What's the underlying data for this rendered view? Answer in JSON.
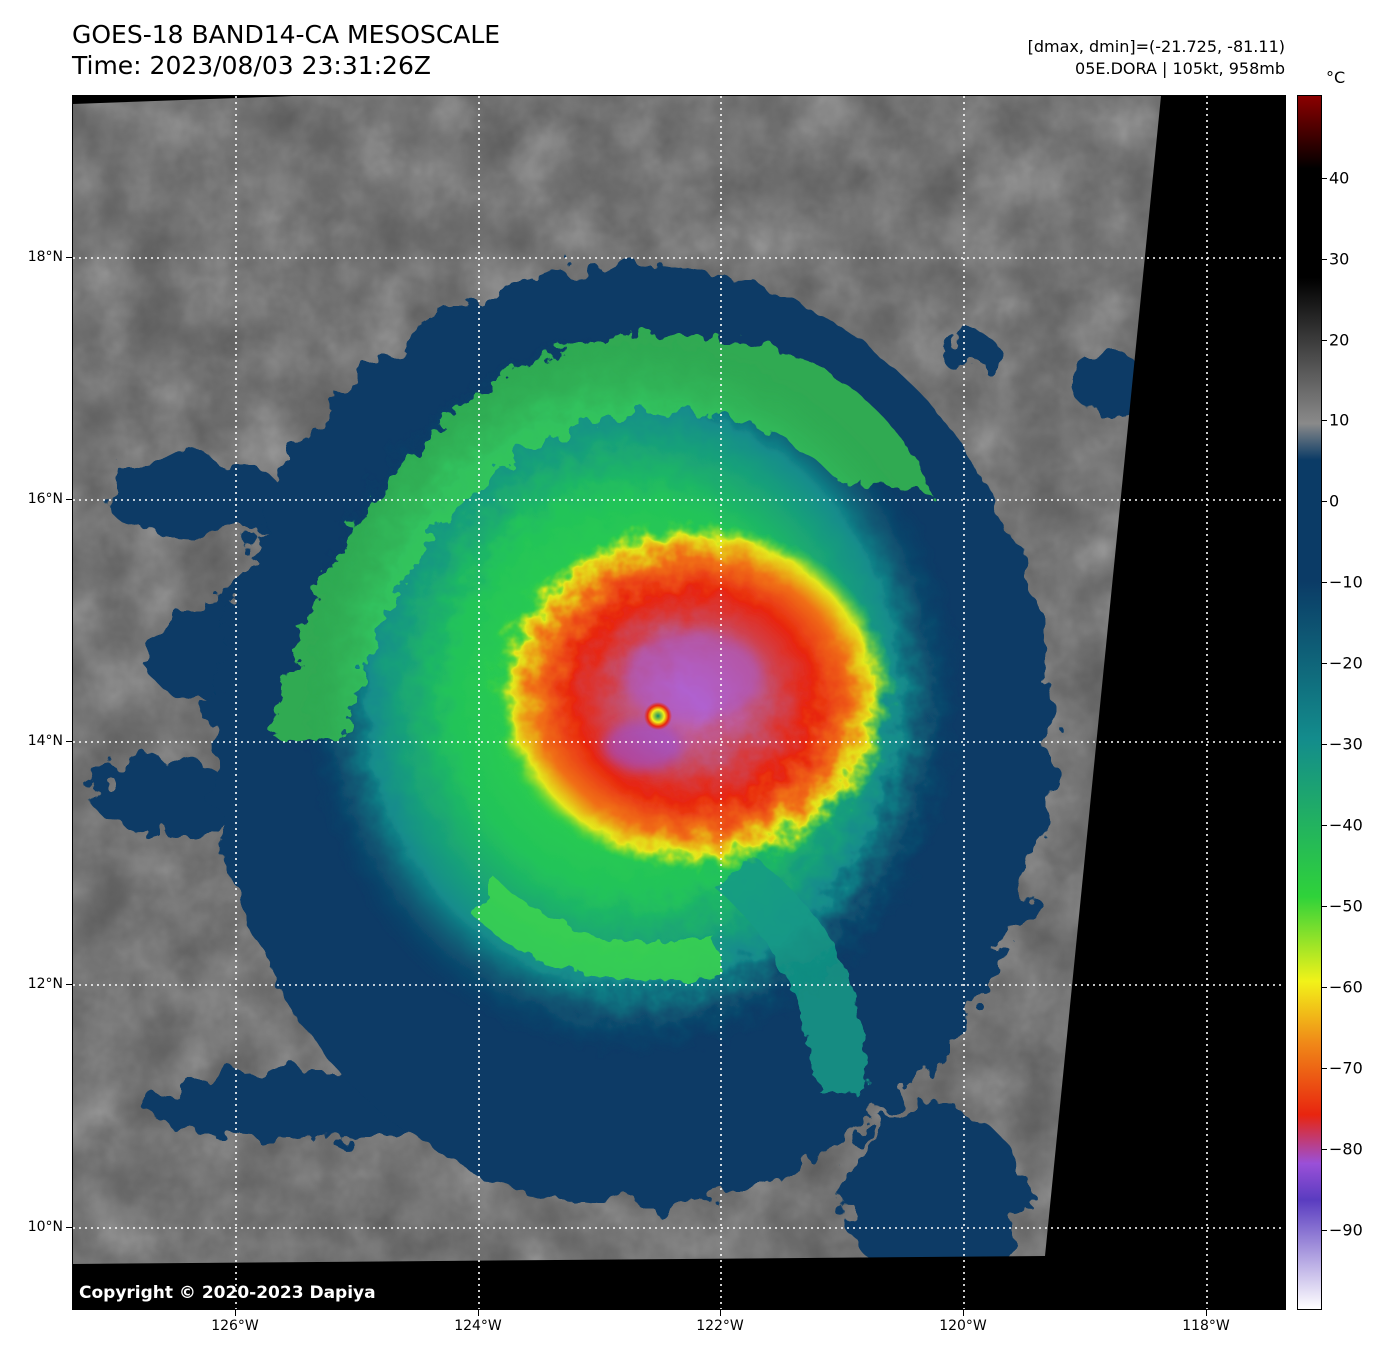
{
  "header": {
    "title_line1": "GOES-18 BAND14-CA MESOSCALE",
    "title_line2": "Time: 2023/08/03 23:31:26Z",
    "stats_line1": "[dmax, dmin]=(-21.725, -81.11)",
    "stats_line2": "05E.DORA | 105kt, 958mb"
  },
  "map": {
    "copyright": "Copyright © 2020-2023 Dapiya",
    "lat_labels": [
      "18°N",
      "16°N",
      "14°N",
      "12°N",
      "10°N"
    ],
    "lon_labels": [
      "126°W",
      "124°W",
      "122°W",
      "120°W",
      "118°W"
    ]
  },
  "colorbar": {
    "unit": "°C",
    "ticks": [
      "40",
      "30",
      "20",
      "10",
      "0",
      "−10",
      "−20",
      "−30",
      "−40",
      "−50",
      "−60",
      "−70",
      "−80",
      "−90"
    ],
    "colors": {
      "warm_max": "#8b0000",
      "warm_black": "#000000",
      "gray": "#8a8a8a",
      "navy": "#0b3b66",
      "teal": "#138c8c",
      "green": "#2fd23a",
      "yellow": "#f2f219",
      "orange": "#f08a18",
      "red": "#e8250f",
      "purple": "#9a50d8",
      "white": "#ffffff"
    }
  }
}
